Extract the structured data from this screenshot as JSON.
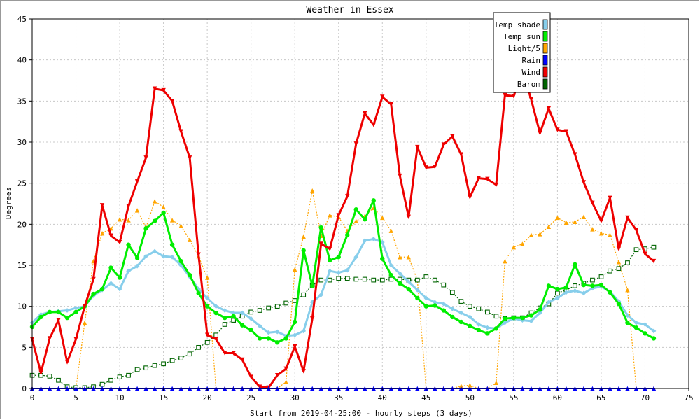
{
  "chart_data": {
    "type": "line",
    "title": "Weather in Essex",
    "xlabel": "Start from 2019-04-25:00 - hourly steps (3 days)",
    "ylabel": "Degrees",
    "xlim": [
      0,
      75
    ],
    "ylim": [
      0,
      45
    ],
    "xticks": [
      0,
      5,
      10,
      15,
      20,
      25,
      30,
      35,
      40,
      45,
      50,
      55,
      60,
      65,
      70,
      75
    ],
    "yticks": [
      0,
      5,
      10,
      15,
      20,
      25,
      30,
      35,
      40,
      45
    ],
    "grid": true,
    "legend_position": "top-right",
    "series": [
      {
        "name": "Temp_shade",
        "color": "#87ceeb",
        "marker": "diamond",
        "values": [
          8.0,
          9.0,
          9.3,
          9.4,
          9.5,
          9.8,
          10.0,
          11.3,
          12.0,
          12.8,
          12.1,
          14.3,
          14.9,
          16.1,
          16.7,
          16.1,
          16.0,
          15.0,
          13.6,
          12.1,
          11.0,
          10.0,
          9.5,
          9.2,
          9.2,
          8.5,
          7.6,
          6.8,
          6.9,
          6.4,
          6.5,
          7.0,
          10.5,
          11.4,
          14.3,
          14.1,
          14.4,
          16.0,
          18.0,
          18.2,
          17.8,
          15.0,
          14.0,
          13.0,
          12.0,
          11.0,
          10.5,
          10.3,
          9.7,
          9.2,
          8.7,
          7.8,
          7.4,
          7.3,
          8.0,
          8.5,
          8.3,
          8.2,
          9.2,
          10.5,
          11.0,
          11.7,
          11.9,
          11.6,
          12.2,
          12.4,
          11.8,
          10.6,
          8.9,
          8.0,
          7.8,
          7.0
        ]
      },
      {
        "name": "Temp_sun",
        "color": "#00ee00",
        "marker": "circle",
        "values": [
          7.5,
          8.7,
          9.3,
          9.3,
          8.6,
          9.3,
          10.0,
          11.5,
          12.1,
          14.7,
          13.5,
          17.5,
          15.9,
          19.5,
          20.4,
          21.4,
          17.5,
          15.5,
          13.8,
          11.6,
          10.0,
          9.2,
          8.6,
          8.8,
          7.7,
          7.1,
          6.1,
          6.1,
          5.6,
          6.1,
          8.1,
          16.8,
          12.5,
          19.6,
          15.6,
          16.0,
          18.7,
          21.8,
          20.6,
          22.9,
          15.8,
          13.8,
          12.8,
          12.1,
          11.0,
          10.0,
          10.1,
          9.5,
          8.7,
          8.1,
          7.6,
          7.1,
          6.7,
          7.3,
          8.5,
          8.6,
          8.6,
          8.9,
          9.6,
          12.5,
          12.1,
          12.3,
          15.1,
          12.6,
          12.5,
          12.6,
          11.7,
          10.3,
          8.0,
          7.4,
          6.7,
          6.1
        ]
      },
      {
        "name": "Light/5",
        "color": "#ffa500",
        "marker": "triangle-up",
        "values": [
          0,
          0,
          0,
          0,
          0,
          0,
          8.0,
          15.5,
          18.9,
          19.5,
          20.6,
          20.5,
          21.7,
          19.6,
          22.8,
          22.1,
          20.5,
          19.8,
          18.1,
          16.1,
          13.5,
          0,
          0,
          0,
          0,
          0,
          0,
          0,
          0,
          0.8,
          14.5,
          18.5,
          24.1,
          18.6,
          21.1,
          20.9,
          19.2,
          20.4,
          21.0,
          22.0,
          20.8,
          19.2,
          16.0,
          16.0,
          13.2,
          0,
          0,
          0,
          0,
          0.3,
          0.4,
          0,
          0,
          0.7,
          15.5,
          17.2,
          17.6,
          18.7,
          18.8,
          19.7,
          20.8,
          20.2,
          20.3,
          20.9,
          19.4,
          18.9,
          18.7,
          15.4,
          12.0,
          0,
          0,
          0
        ]
      },
      {
        "name": "Rain",
        "color": "#0000ff",
        "marker": "triangle-up",
        "values": [
          0,
          0,
          0,
          0,
          0,
          0,
          0,
          0,
          0,
          0,
          0,
          0,
          0,
          0,
          0,
          0,
          0,
          0,
          0,
          0,
          0,
          0,
          0,
          0,
          0,
          0,
          0,
          0,
          0,
          0,
          0,
          0,
          0,
          0,
          0,
          0,
          0,
          0,
          0,
          0,
          0,
          0,
          0,
          0,
          0,
          0,
          0,
          0,
          0,
          0,
          0,
          0,
          0,
          0,
          0,
          0,
          0,
          0,
          0,
          0,
          0,
          0,
          0,
          0,
          0,
          0,
          0,
          0,
          0,
          0,
          0,
          0
        ]
      },
      {
        "name": "Wind",
        "color": "#ee0000",
        "marker": "triangle-down",
        "values": [
          6.0,
          1.9,
          6.1,
          8.3,
          3.2,
          6.0,
          10.0,
          13.3,
          22.3,
          18.6,
          17.8,
          22.2,
          25.2,
          28.1,
          36.5,
          36.3,
          35.0,
          31.3,
          28.1,
          16.3,
          6.5,
          6.0,
          4.3,
          4.3,
          3.5,
          1.4,
          0.2,
          0.1,
          1.6,
          2.4,
          5.1,
          2.1,
          8.5,
          17.6,
          17.0,
          21.1,
          23.4,
          29.8,
          33.5,
          32.1,
          35.5,
          34.6,
          25.9,
          20.9,
          29.4,
          26.9,
          27.0,
          29.7,
          30.7,
          28.5,
          23.3,
          25.6,
          25.5,
          24.8,
          35.7,
          35.6,
          38.7,
          35.2,
          31.1,
          34.1,
          31.5,
          31.3,
          28.5,
          25.1,
          22.6,
          20.4,
          23.2,
          17.0,
          20.8,
          19.3,
          16.4,
          15.5
        ]
      },
      {
        "name": "Barom",
        "color": "#006400",
        "marker": "square-open",
        "values": [
          1.6,
          1.6,
          1.5,
          1.0,
          0.2,
          0.1,
          0.1,
          0.2,
          0.5,
          1.0,
          1.4,
          1.6,
          2.3,
          2.5,
          2.8,
          3.0,
          3.4,
          3.7,
          4.2,
          5.0,
          5.6,
          6.5,
          7.8,
          8.3,
          8.8,
          9.3,
          9.5,
          9.8,
          10.0,
          10.4,
          10.7,
          11.4,
          12.6,
          13.2,
          13.2,
          13.4,
          13.4,
          13.3,
          13.3,
          13.2,
          13.2,
          13.3,
          13.3,
          13.2,
          13.2,
          13.6,
          13.2,
          12.6,
          11.7,
          10.6,
          10.0,
          9.7,
          9.3,
          8.8,
          8.5,
          8.6,
          8.6,
          9.2,
          9.8,
          10.3,
          11.6,
          12.0,
          12.5,
          12.8,
          13.2,
          13.6,
          14.3,
          14.6,
          15.3,
          16.9,
          17.0,
          17.2
        ]
      }
    ]
  }
}
